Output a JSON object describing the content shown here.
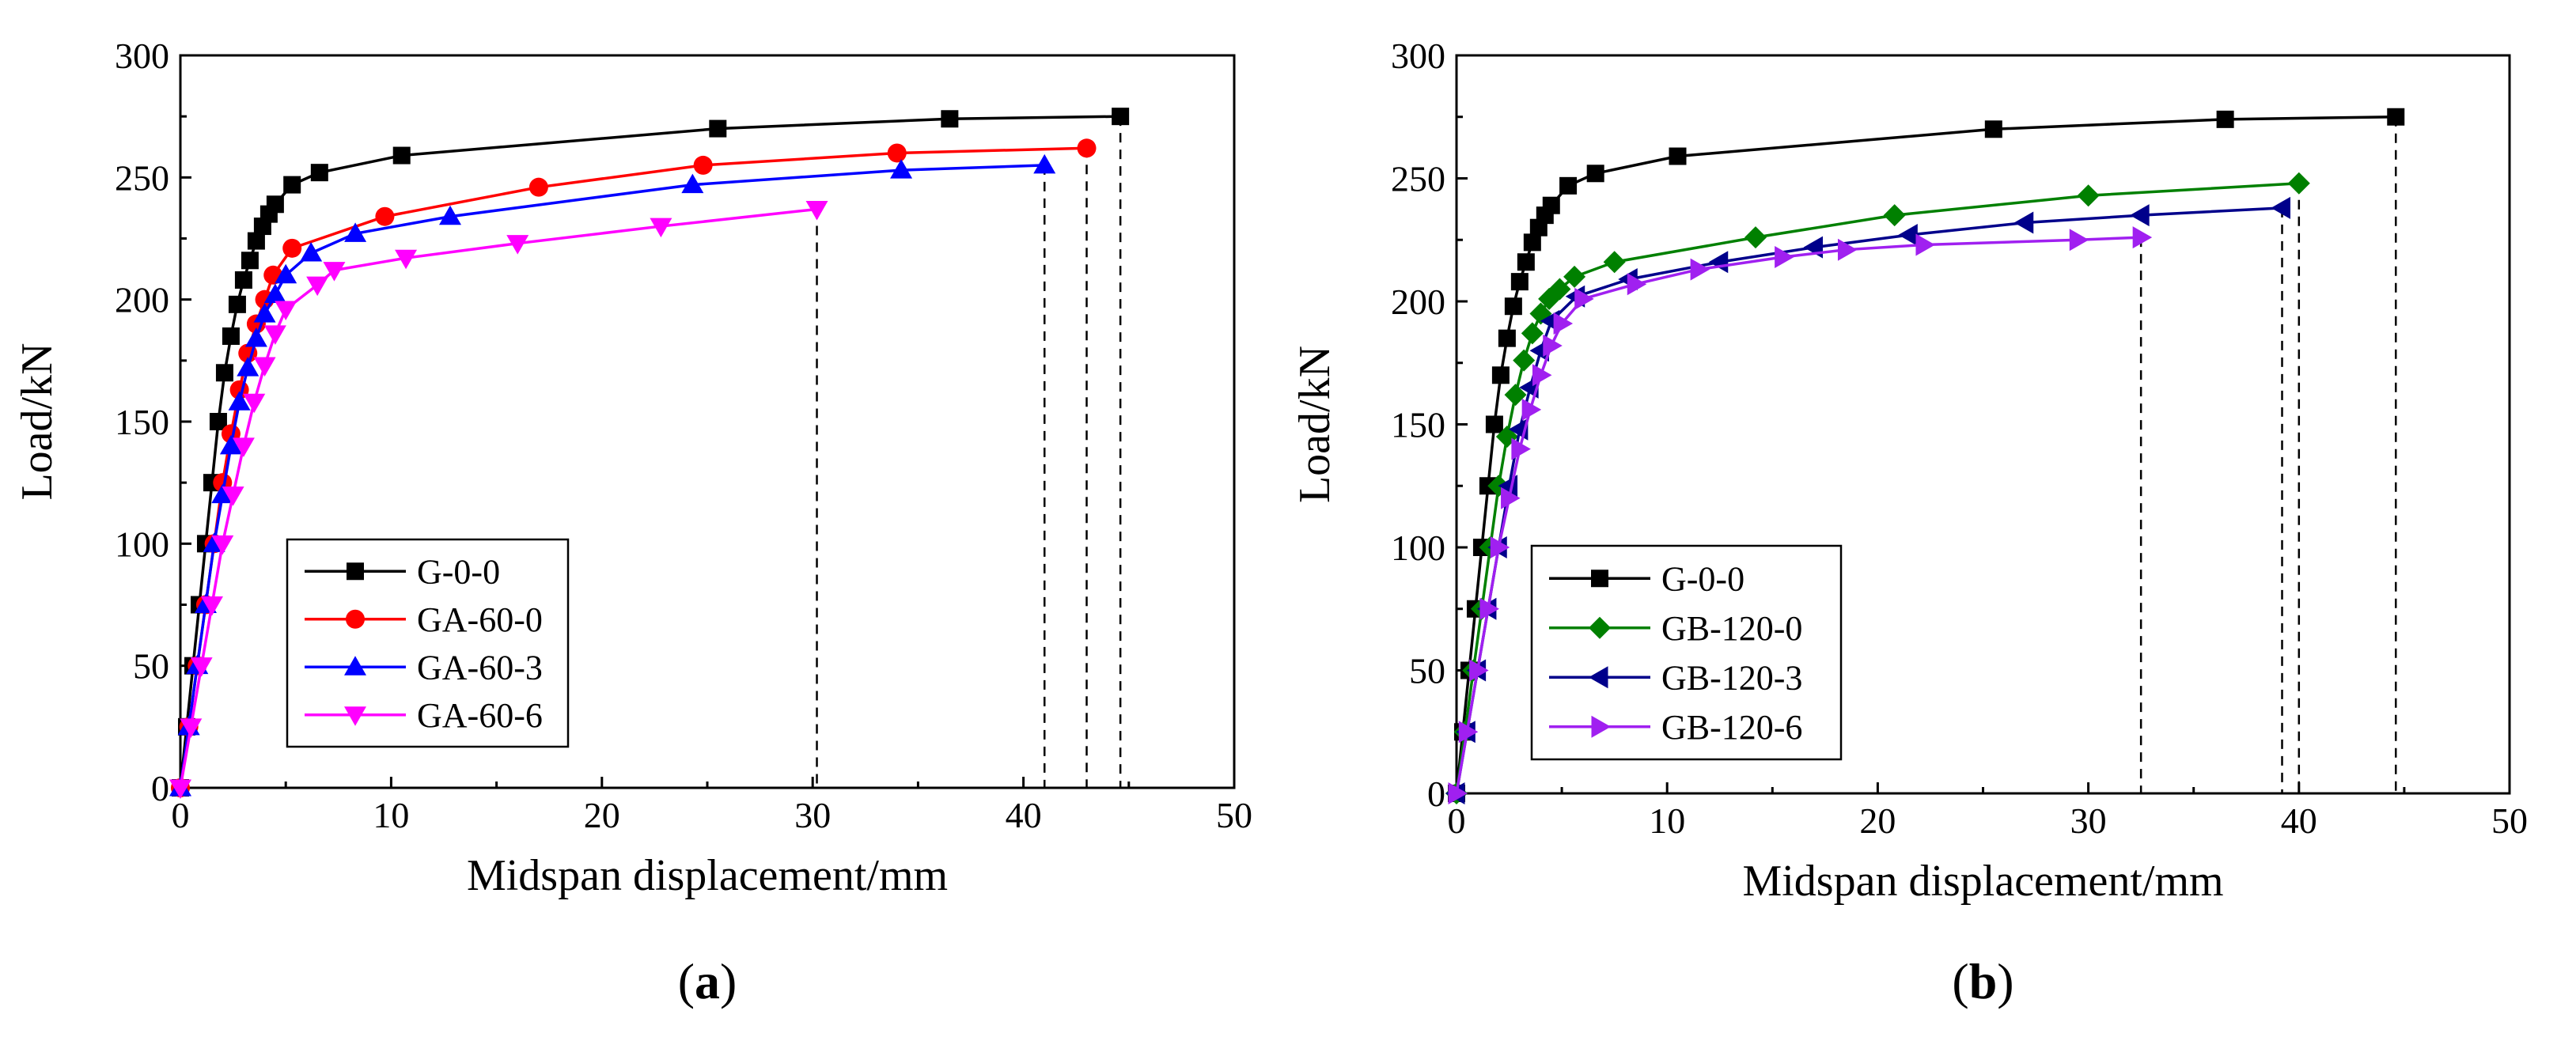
{
  "chart_data": [
    {
      "id": "a",
      "type": "line",
      "panel_label": {
        "open": "(",
        "letter": "a",
        "close": ")"
      },
      "xlabel": "Midspan displacement/mm",
      "ylabel": "Load/kN",
      "xlim": [
        0,
        50
      ],
      "ylim": [
        0,
        300
      ],
      "xticks": [
        0,
        10,
        20,
        30,
        40,
        50
      ],
      "yticks": [
        0,
        50,
        100,
        150,
        200,
        250,
        300
      ],
      "legend_position": "lower-left",
      "series": [
        {
          "name": "G-0-0",
          "color": "#000000",
          "marker": "square",
          "drop_line_x": 44.6,
          "x": [
            0,
            0.3,
            0.6,
            0.9,
            1.2,
            1.5,
            1.8,
            2.1,
            2.4,
            2.7,
            3.0,
            3.3,
            3.6,
            3.9,
            4.2,
            4.5,
            5.3,
            6.6,
            10.5,
            25.5,
            36.5,
            44.6
          ],
          "y": [
            0,
            25,
            50,
            75,
            100,
            125,
            150,
            170,
            185,
            198,
            208,
            216,
            224,
            230,
            235,
            239,
            247,
            252,
            259,
            270,
            274,
            275
          ]
        },
        {
          "name": "GA-60-0",
          "color": "#ff0000",
          "marker": "circle",
          "drop_line_x": 43.0,
          "x": [
            0,
            0.4,
            0.8,
            1.2,
            1.6,
            2.0,
            2.4,
            2.8,
            3.2,
            3.6,
            4.0,
            4.4,
            5.3,
            9.7,
            17.0,
            24.8,
            34.0,
            43.0
          ],
          "y": [
            0,
            25,
            50,
            75,
            100,
            125,
            145,
            163,
            178,
            190,
            200,
            210,
            221,
            234,
            246,
            255,
            260,
            262
          ]
        },
        {
          "name": "GA-60-3",
          "color": "#0000ff",
          "marker": "triangle-up",
          "drop_line_x": 41.0,
          "x": [
            0,
            0.4,
            0.8,
            1.2,
            1.6,
            2.0,
            2.4,
            2.8,
            3.2,
            3.6,
            4.0,
            4.5,
            5.0,
            6.2,
            8.3,
            12.8,
            24.3,
            34.2,
            41.0
          ],
          "y": [
            0,
            25,
            50,
            75,
            100,
            120,
            140,
            158,
            172,
            184,
            194,
            202,
            210,
            219,
            227,
            234,
            247,
            253,
            255
          ]
        },
        {
          "name": "GA-60-6",
          "color": "#ff00ff",
          "marker": "triangle-down",
          "drop_line_x": 30.2,
          "x": [
            0,
            0.5,
            1.0,
            1.5,
            2.0,
            2.5,
            3.0,
            3.5,
            4.0,
            4.5,
            5.0,
            6.5,
            7.3,
            10.7,
            16.0,
            22.8,
            30.2
          ],
          "y": [
            0,
            25,
            50,
            75,
            100,
            120,
            140,
            158,
            173,
            186,
            196,
            206,
            212,
            217,
            223,
            230,
            237
          ]
        }
      ]
    },
    {
      "id": "b",
      "type": "line",
      "panel_label": {
        "open": "(",
        "letter": "b",
        "close": ")"
      },
      "xlabel": "Midspan displacement/mm",
      "ylabel": "Load/kN",
      "xlim": [
        0,
        50
      ],
      "ylim": [
        0,
        300
      ],
      "xticks": [
        0,
        10,
        20,
        30,
        40,
        50
      ],
      "yticks": [
        0,
        50,
        100,
        150,
        200,
        250,
        300
      ],
      "legend_position": "lower-left",
      "series": [
        {
          "name": "G-0-0",
          "color": "#000000",
          "marker": "square",
          "drop_line_x": 44.6,
          "x": [
            0,
            0.3,
            0.6,
            0.9,
            1.2,
            1.5,
            1.8,
            2.1,
            2.4,
            2.7,
            3.0,
            3.3,
            3.6,
            3.9,
            4.2,
            4.5,
            5.3,
            6.6,
            10.5,
            25.5,
            36.5,
            44.6
          ],
          "y": [
            0,
            25,
            50,
            75,
            100,
            125,
            150,
            170,
            185,
            198,
            208,
            216,
            224,
            230,
            235,
            239,
            247,
            252,
            259,
            270,
            274,
            275
          ]
        },
        {
          "name": "GB-120-0",
          "color": "#008000",
          "marker": "diamond",
          "drop_line_x": 40.0,
          "x": [
            0,
            0.4,
            0.8,
            1.2,
            1.6,
            2.0,
            2.4,
            2.8,
            3.2,
            3.6,
            4.0,
            4.4,
            4.9,
            5.6,
            7.5,
            14.2,
            20.8,
            30.0,
            40.0
          ],
          "y": [
            0,
            25,
            50,
            75,
            100,
            125,
            145,
            162,
            176,
            187,
            195,
            201,
            205,
            210,
            216,
            226,
            235,
            243,
            248
          ]
        },
        {
          "name": "GB-120-3",
          "color": "#00008b",
          "marker": "triangle-left",
          "drop_line_x": 39.2,
          "x": [
            0,
            0.5,
            1.0,
            1.5,
            2.0,
            2.5,
            3.0,
            3.5,
            4.0,
            4.5,
            5.7,
            8.2,
            12.5,
            17.0,
            21.5,
            27.0,
            32.5,
            39.2
          ],
          "y": [
            0,
            25,
            50,
            75,
            100,
            125,
            148,
            165,
            180,
            192,
            202,
            209,
            216,
            222,
            227,
            232,
            235,
            238
          ]
        },
        {
          "name": "GB-120-6",
          "color": "#a020f0",
          "marker": "triangle-right",
          "drop_line_x": 32.5,
          "x": [
            0,
            0.5,
            1.0,
            1.5,
            2.0,
            2.5,
            3.0,
            3.5,
            4.0,
            4.5,
            5.0,
            6.0,
            8.5,
            11.5,
            15.5,
            18.5,
            22.2,
            29.5,
            32.5
          ],
          "y": [
            0,
            25,
            50,
            75,
            100,
            120,
            140,
            156,
            170,
            182,
            191,
            201,
            207,
            213,
            218,
            221,
            223,
            225,
            226
          ]
        }
      ]
    }
  ]
}
